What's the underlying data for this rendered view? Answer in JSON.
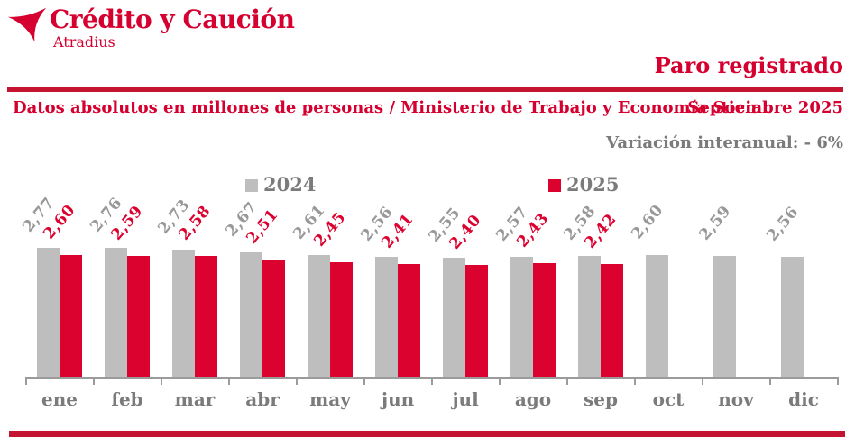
{
  "header": {
    "brand": "Crédito y Caución",
    "brand_sub": "Atradius",
    "title": "Paro registrado",
    "subtitle_left": "Datos absolutos en millones de personas / Ministerio de Trabajo y Economía Social",
    "subtitle_right": "Septiembre 2025",
    "variation": "Variación interanual: - 6%"
  },
  "legend": [
    {
      "label": "2024",
      "color": "#bebebe"
    },
    {
      "label": "2025",
      "color": "#dc0230"
    }
  ],
  "colors": {
    "text_red": "#d5002f",
    "rule_red": "#c51432",
    "bar_red": "#dc0230",
    "bar_gray": "#bebebe",
    "gray_text": "#7b7b7b",
    "value_gray": "#98989a",
    "axis_gray": "#9b9b9b"
  },
  "chart_data": {
    "type": "bar",
    "title": "Paro registrado",
    "subtitle": "Datos absolutos en millones de personas / Ministerio de Trabajo y Economía Social",
    "period": "Septiembre 2025",
    "yoy_variation_pct": -6,
    "unit": "millones de personas",
    "categories": [
      "ene",
      "feb",
      "mar",
      "abr",
      "may",
      "jun",
      "jul",
      "ago",
      "sep",
      "oct",
      "nov",
      "dic"
    ],
    "series": [
      {
        "name": "2024",
        "values": [
          2.77,
          2.76,
          2.73,
          2.67,
          2.61,
          2.56,
          2.55,
          2.57,
          2.58,
          2.6,
          2.59,
          2.56
        ],
        "labels": [
          "2,77",
          "2,76",
          "2,73",
          "2,67",
          "2,61",
          "2,56",
          "2,55",
          "2,57",
          "2,58",
          "2,60",
          "2,59",
          "2,56"
        ]
      },
      {
        "name": "2025",
        "values": [
          2.6,
          2.59,
          2.58,
          2.51,
          2.45,
          2.41,
          2.4,
          2.43,
          2.42,
          null,
          null,
          null
        ],
        "labels": [
          "2,60",
          "2,59",
          "2,58",
          "2,51",
          "2,45",
          "2,41",
          "2,40",
          "2,43",
          "2,42",
          null,
          null,
          null
        ]
      }
    ],
    "ylim": [
      0,
      2.9
    ],
    "grid": false,
    "legend_position": "top",
    "value_labels_rotated": true
  }
}
